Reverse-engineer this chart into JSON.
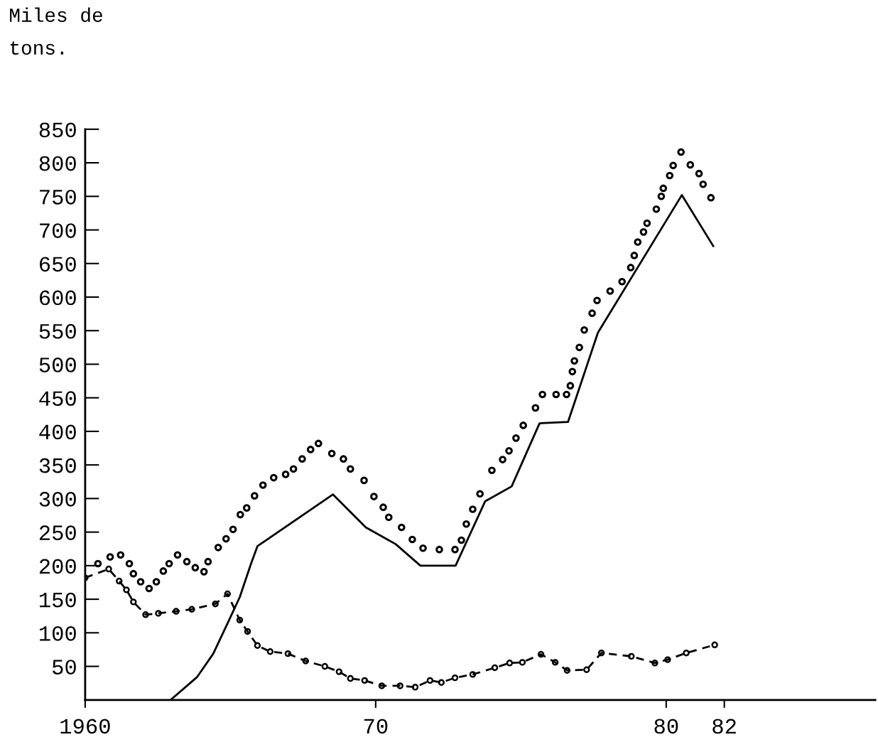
{
  "chart_data": {
    "type": "line",
    "ylabel": "Miles de\ntons.",
    "xlim": [
      1960,
      1987.2
    ],
    "ylim": [
      0,
      850
    ],
    "xticks": [
      {
        "value": 1960,
        "label": "1960"
      },
      {
        "value": 1970,
        "label": "70"
      },
      {
        "value": 1980,
        "label": "80"
      },
      {
        "value": 1982,
        "label": "82"
      }
    ],
    "yticks": [
      50,
      100,
      150,
      200,
      250,
      300,
      350,
      400,
      450,
      500,
      550,
      600,
      650,
      700,
      750,
      800,
      850
    ],
    "grid": false,
    "legend": false,
    "series": [
      {
        "color": "#000000",
        "line_style": "solid",
        "marker": "none",
        "x": [
          1962.94,
          1963.85,
          1964.41,
          1964.9,
          1965.32,
          1965.71,
          1965.93,
          1968.53,
          1969.66,
          1970.69,
          1971.54,
          1972.75,
          1973.77,
          1974.68,
          1975.64,
          1976.62,
          1977.65,
          1980.54,
          1981.62
        ],
        "values": [
          0,
          34,
          69,
          114,
          153,
          203,
          229,
          306,
          257,
          232,
          200,
          200,
          296,
          318,
          412,
          414,
          547,
          752,
          676
        ]
      },
      {
        "type": "scatter",
        "color": "#000000",
        "marker": "circle",
        "x": [
          1960.44,
          1960.86,
          1961.22,
          1961.52,
          1961.66,
          1961.91,
          1962.2,
          1962.45,
          1962.69,
          1962.89,
          1963.18,
          1963.5,
          1963.79,
          1964.09,
          1964.23,
          1964.58,
          1964.85,
          1965.09,
          1965.34,
          1965.56,
          1965.83,
          1966.12,
          1966.49,
          1966.9,
          1967.17,
          1967.47,
          1967.76,
          1968.03,
          1968.49,
          1968.89,
          1969.13,
          1969.6,
          1969.94,
          1970.26,
          1970.45,
          1970.89,
          1971.26,
          1971.63,
          1972.19,
          1972.73,
          1972.95,
          1973.12,
          1973.34,
          1973.59,
          1974.0,
          1974.37,
          1974.59,
          1974.83,
          1975.08,
          1975.5,
          1975.74,
          1976.21,
          1976.57,
          1976.7,
          1976.77,
          1976.84,
          1977.01,
          1977.18,
          1977.45,
          1977.62,
          1978.07,
          1978.48,
          1978.78,
          1978.9,
          1979.02,
          1979.22,
          1979.34,
          1979.66,
          1979.83,
          1979.9,
          1980.12,
          1980.24,
          1980.51,
          1980.83,
          1981.13,
          1981.27,
          1981.54
        ],
        "values": [
          203,
          213,
          216,
          203,
          188,
          176,
          166,
          176,
          192,
          203,
          216,
          206,
          197,
          191,
          206,
          227,
          240,
          254,
          276,
          286,
          304,
          320,
          331,
          336,
          344,
          359,
          373,
          382,
          367,
          359,
          344,
          327,
          303,
          287,
          272,
          257,
          239,
          226,
          224,
          224,
          238,
          262,
          284,
          307,
          342,
          358,
          371,
          390,
          409,
          435,
          455,
          455,
          455,
          468,
          489,
          505,
          525,
          551,
          576,
          595,
          609,
          623,
          644,
          662,
          682,
          697,
          710,
          731,
          750,
          762,
          781,
          796,
          816,
          797,
          784,
          768,
          748
        ]
      },
      {
        "type": "line",
        "color": "#000000",
        "line_style": "dashed",
        "marker": "circle",
        "x": [
          1960.0,
          1960.81,
          1961.17,
          1961.42,
          1961.66,
          1962.08,
          1962.52,
          1963.13,
          1963.67,
          1964.48,
          1964.9,
          1965.32,
          1965.59,
          1965.93,
          1966.37,
          1966.98,
          1967.59,
          1968.25,
          1968.74,
          1969.13,
          1969.62,
          1970.21,
          1970.84,
          1971.36,
          1971.87,
          1972.26,
          1972.73,
          1973.34,
          1974.1,
          1974.61,
          1975.05,
          1975.69,
          1976.18,
          1976.59,
          1977.26,
          1977.77,
          1978.8,
          1979.61,
          1980.05,
          1980.69,
          1981.67
        ],
        "values": [
          182,
          195,
          177,
          164,
          146,
          127,
          129,
          132,
          135,
          143,
          158,
          119,
          102,
          81,
          72,
          69,
          58,
          50,
          42,
          32,
          29,
          21,
          21,
          19,
          29,
          26,
          33,
          38,
          48,
          55,
          56,
          68,
          56,
          44,
          45,
          70,
          65,
          55,
          60,
          70,
          82
        ]
      }
    ]
  }
}
